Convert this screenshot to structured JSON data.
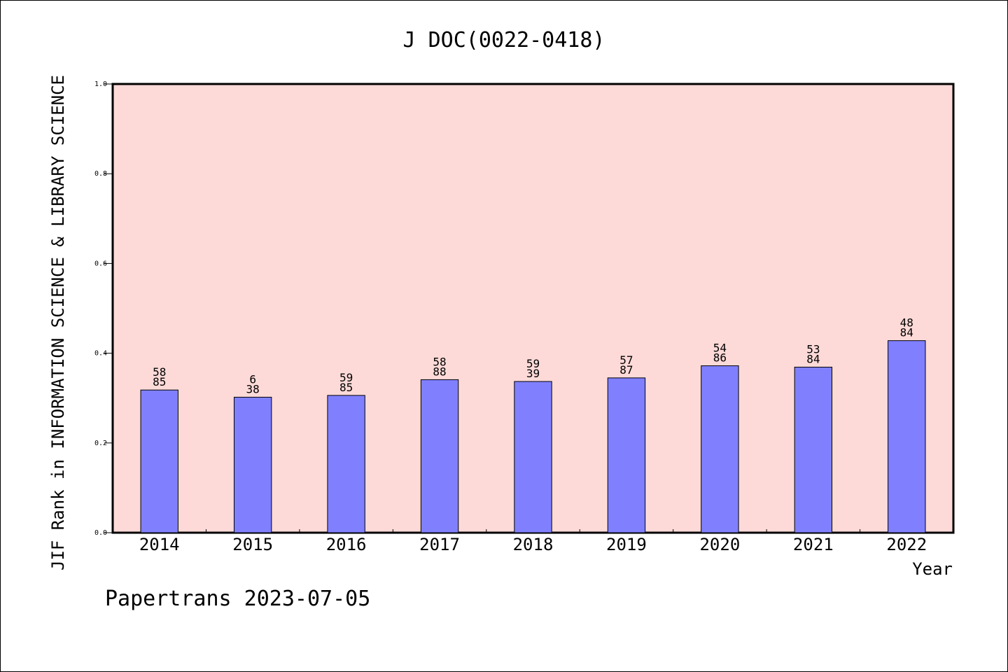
{
  "chart_data": {
    "type": "bar",
    "title": "J DOC(0022-0418)",
    "xlabel": "Year",
    "ylabel": "JIF Rank in INFORMATION SCIENCE & LIBRARY SCIENCE",
    "ylim": [
      0,
      1.0
    ],
    "yticks": [
      "0.0",
      "0.2",
      "0.4",
      "0.6",
      "0.8",
      "1.0"
    ],
    "categories": [
      "2014",
      "2015",
      "2016",
      "2017",
      "2018",
      "2019",
      "2020",
      "2021",
      "2022"
    ],
    "values": [
      0.318,
      0.302,
      0.306,
      0.341,
      0.337,
      0.345,
      0.372,
      0.369,
      0.428
    ],
    "labels_top": [
      "58",
      "6",
      "59",
      "58",
      "59",
      "57",
      "54",
      "53",
      "48"
    ],
    "labels_bottom": [
      "85",
      "38",
      "85",
      "88",
      "39",
      "87",
      "86",
      "84",
      "84"
    ],
    "grid": false,
    "colors": {
      "bar": "#8080ff",
      "plot_background": "#fddad8",
      "axis": "#000000"
    }
  },
  "footer": "Papertrans 2023-07-05"
}
